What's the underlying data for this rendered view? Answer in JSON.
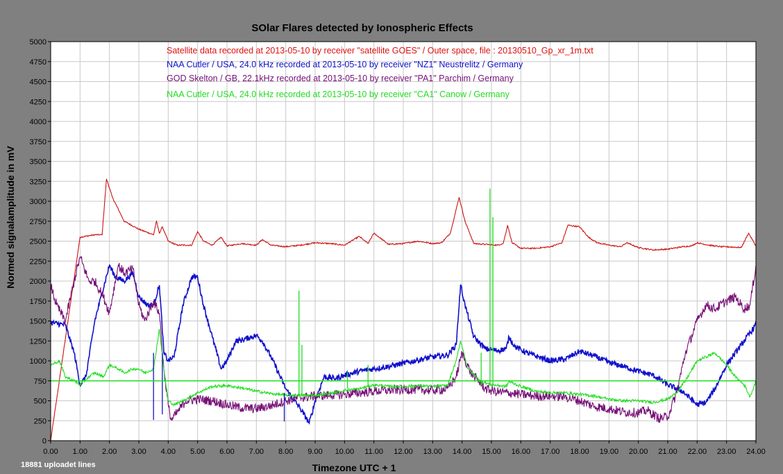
{
  "chart_data": {
    "type": "line",
    "title": "SOlar Flares detected by Ionospheric Effects",
    "xlabel": "Timezone UTC + 1",
    "ylabel": "Normed signalamplitude in mV",
    "xlim": [
      0,
      24
    ],
    "ylim": [
      0,
      5000
    ],
    "x_ticks": [
      "0.00",
      "1.00",
      "2.00",
      "3.00",
      "4.00",
      "5.00",
      "6.00",
      "7.00",
      "8.00",
      "9.00",
      "10.00",
      "11.00",
      "12.00",
      "13.00",
      "14.00",
      "15.00",
      "16.00",
      "17.00",
      "18.00",
      "19.00",
      "20.00",
      "21.00",
      "22.00",
      "23.00",
      "24.00"
    ],
    "y_ticks": [
      "0",
      "250",
      "500",
      "750",
      "1000",
      "1250",
      "1500",
      "1750",
      "2000",
      "2250",
      "2500",
      "2750",
      "3000",
      "3250",
      "3500",
      "3750",
      "4000",
      "4250",
      "4500",
      "4750",
      "5000"
    ],
    "grid": true,
    "background": "#ffffff",
    "reference_line": {
      "y": 750,
      "color": "#22dd22"
    },
    "legend": [
      {
        "text": "Satellite data  recorded at 2013-05-10 by receiver \"satellite GOES\" / Outer space, file : 20130510_Gp_xr_1m.txt",
        "color": "#dd1111"
      },
      {
        "text": "NAA Cutler / USA, 24.0 kHz  recorded at 2013-05-10 by receiver \"NZ1\" Neustrelitz / Germany",
        "color": "#1111cc"
      },
      {
        "text": "GOD Skelton / GB, 22.1kHz  recorded at 2013-05-10 by receiver \"PA1\" Parchim / Germany",
        "color": "#771177"
      },
      {
        "text": "NAA Cutler / USA, 24.0 kHz  recorded at 2013-05-10 by receiver \"CA1\" Canow / Germany",
        "color": "#22dd22"
      }
    ],
    "series": [
      {
        "color": "#cc1111",
        "noise": 8,
        "x": [
          0,
          1,
          1.5,
          1.75,
          1.9,
          2.1,
          2.5,
          3.0,
          3.5,
          3.6,
          3.7,
          3.8,
          4.0,
          4.3,
          4.8,
          5.0,
          5.2,
          5.5,
          5.8,
          6.0,
          6.5,
          7.0,
          7.2,
          7.5,
          8.0,
          8.5,
          9.0,
          9.5,
          10.0,
          10.5,
          10.8,
          11.0,
          11.5,
          12.0,
          12.5,
          13.0,
          13.3,
          13.6,
          13.8,
          13.9,
          14.1,
          14.4,
          14.8,
          15.2,
          15.4,
          15.55,
          15.7,
          16.0,
          16.5,
          17.0,
          17.4,
          17.6,
          18.0,
          18.3,
          18.6,
          19.0,
          19.4,
          19.6,
          20.0,
          20.5,
          21.0,
          21.5,
          21.8,
          22.0,
          22.4,
          22.8,
          23.0,
          23.5,
          23.75,
          24.0
        ],
        "y": [
          0,
          2550,
          2580,
          2580,
          3280,
          3050,
          2750,
          2650,
          2580,
          2750,
          2600,
          2680,
          2500,
          2450,
          2450,
          2620,
          2500,
          2450,
          2550,
          2440,
          2470,
          2450,
          2520,
          2450,
          2430,
          2450,
          2480,
          2470,
          2450,
          2560,
          2470,
          2600,
          2460,
          2470,
          2500,
          2470,
          2480,
          2600,
          2900,
          3050,
          2750,
          2470,
          2460,
          2450,
          2470,
          2700,
          2480,
          2410,
          2410,
          2430,
          2480,
          2700,
          2680,
          2550,
          2480,
          2450,
          2430,
          2480,
          2420,
          2390,
          2400,
          2430,
          2440,
          2480,
          2450,
          2430,
          2430,
          2420,
          2600,
          2440
        ]
      },
      {
        "color": "#1111cc",
        "noise": 35,
        "x": [
          0,
          0.5,
          0.8,
          1.0,
          1.2,
          1.5,
          2.0,
          2.2,
          2.5,
          2.8,
          3.0,
          3.3,
          3.5,
          3.7,
          3.85,
          4.0,
          4.2,
          4.5,
          4.8,
          5.0,
          5.2,
          5.5,
          5.8,
          6.0,
          6.3,
          6.5,
          7.0,
          7.2,
          7.5,
          8.0,
          8.5,
          8.8,
          9.0,
          9.3,
          9.7,
          10.0,
          10.5,
          11.0,
          11.5,
          12.0,
          12.5,
          13.0,
          13.5,
          13.8,
          13.95,
          14.1,
          14.4,
          14.8,
          15.2,
          15.5,
          15.6,
          15.8,
          16.2,
          16.6,
          17.0,
          17.5,
          17.8,
          18.0,
          18.5,
          19.0,
          19.5,
          20.0,
          20.5,
          21.0,
          21.5,
          22.0,
          22.3,
          22.6,
          23.0,
          23.5,
          24.0
        ],
        "y": [
          1480,
          1450,
          1100,
          700,
          800,
          1500,
          2200,
          2050,
          2000,
          2100,
          1800,
          1700,
          1700,
          1950,
          1100,
          1000,
          1050,
          1700,
          2050,
          2050,
          1700,
          1300,
          900,
          1000,
          1250,
          1260,
          1320,
          1250,
          1050,
          650,
          400,
          220,
          500,
          800,
          780,
          820,
          870,
          900,
          930,
          970,
          1010,
          1050,
          1070,
          1200,
          1950,
          1700,
          1300,
          1150,
          1130,
          1150,
          1300,
          1180,
          1100,
          1050,
          1000,
          1020,
          1080,
          1120,
          1060,
          980,
          930,
          870,
          820,
          700,
          620,
          450,
          480,
          650,
          950,
          1200,
          1450
        ]
      },
      {
        "color": "#771177",
        "noise": 60,
        "x": [
          0,
          0.2,
          0.5,
          0.8,
          1.0,
          1.3,
          1.5,
          1.8,
          2.0,
          2.3,
          2.5,
          2.8,
          3.0,
          3.2,
          3.5,
          3.7,
          3.85,
          4.0,
          4.1,
          4.3,
          4.6,
          5.0,
          5.5,
          6.0,
          6.5,
          7.0,
          7.5,
          8.0,
          8.5,
          9.0,
          9.5,
          10.0,
          10.5,
          11.0,
          11.5,
          12.0,
          12.5,
          13.0,
          13.5,
          13.8,
          14.0,
          14.3,
          14.8,
          15.2,
          15.6,
          16.0,
          16.5,
          17.0,
          17.5,
          18.0,
          18.5,
          19.0,
          19.5,
          20.0,
          20.3,
          20.7,
          21.0,
          21.3,
          21.6,
          22.0,
          22.3,
          22.6,
          23.0,
          23.3,
          23.6,
          23.8,
          24.0
        ],
        "y": [
          1950,
          1700,
          1500,
          2000,
          2300,
          2000,
          2000,
          1800,
          1600,
          2200,
          2100,
          2150,
          1700,
          1500,
          1750,
          1600,
          900,
          450,
          260,
          350,
          500,
          520,
          500,
          450,
          410,
          400,
          440,
          500,
          540,
          560,
          570,
          580,
          600,
          620,
          630,
          640,
          640,
          630,
          650,
          800,
          1100,
          850,
          650,
          610,
          600,
          580,
          560,
          560,
          550,
          500,
          430,
          400,
          360,
          350,
          380,
          280,
          300,
          600,
          1100,
          1500,
          1700,
          1650,
          1750,
          1800,
          1650,
          1700,
          2200
        ]
      },
      {
        "color": "#22dd22",
        "noise": 18,
        "x": [
          0,
          0.3,
          0.5,
          0.8,
          1.0,
          1.3,
          1.5,
          1.8,
          2.0,
          2.3,
          2.5,
          2.8,
          3.0,
          3.2,
          3.5,
          3.7,
          3.85,
          4.0,
          4.2,
          4.5,
          5.0,
          5.5,
          6.0,
          6.5,
          7.0,
          7.5,
          8.0,
          8.5,
          9.0,
          9.5,
          10.0,
          10.5,
          11.0,
          11.5,
          12.0,
          12.5,
          13.0,
          13.5,
          13.8,
          13.95,
          14.2,
          14.6,
          15.0,
          15.5,
          15.6,
          16.0,
          16.5,
          17.0,
          17.5,
          18.0,
          18.5,
          19.0,
          19.5,
          20.0,
          20.5,
          21.0,
          21.3,
          21.6,
          22.0,
          22.3,
          22.6,
          23.0,
          23.3,
          23.6,
          23.8,
          24.0
        ],
        "y": [
          950,
          1000,
          800,
          750,
          700,
          800,
          850,
          800,
          950,
          900,
          850,
          900,
          900,
          850,
          900,
          1400,
          900,
          500,
          450,
          500,
          600,
          680,
          690,
          660,
          620,
          590,
          570,
          570,
          570,
          590,
          630,
          650,
          700,
          680,
          680,
          690,
          680,
          690,
          1000,
          1250,
          900,
          750,
          700,
          680,
          740,
          680,
          620,
          600,
          600,
          580,
          560,
          520,
          500,
          500,
          480,
          520,
          600,
          750,
          1000,
          1050,
          1100,
          950,
          800,
          700,
          550,
          750
        ]
      }
    ],
    "spikes": [
      {
        "x": 3.5,
        "from": 1100,
        "to": 260,
        "color": "#1111cc"
      },
      {
        "x": 3.8,
        "from": 1100,
        "to": 330,
        "color": "#1111cc"
      },
      {
        "x": 7.95,
        "from": 600,
        "to": 240,
        "color": "#1111cc"
      },
      {
        "x": 8.45,
        "from": 560,
        "to": 1880,
        "color": "#22dd22"
      },
      {
        "x": 8.55,
        "from": 560,
        "to": 1200,
        "color": "#22dd22"
      },
      {
        "x": 10.1,
        "from": 650,
        "to": 850,
        "color": "#22dd22"
      },
      {
        "x": 10.8,
        "from": 680,
        "to": 950,
        "color": "#22dd22"
      },
      {
        "x": 14.65,
        "from": 700,
        "to": 1100,
        "color": "#22dd22"
      },
      {
        "x": 14.95,
        "from": 700,
        "to": 3160,
        "color": "#22dd22"
      },
      {
        "x": 15.05,
        "from": 700,
        "to": 2800,
        "color": "#22dd22"
      }
    ]
  },
  "footer": {
    "uploaded_lines": "18881 uploadet lines"
  }
}
